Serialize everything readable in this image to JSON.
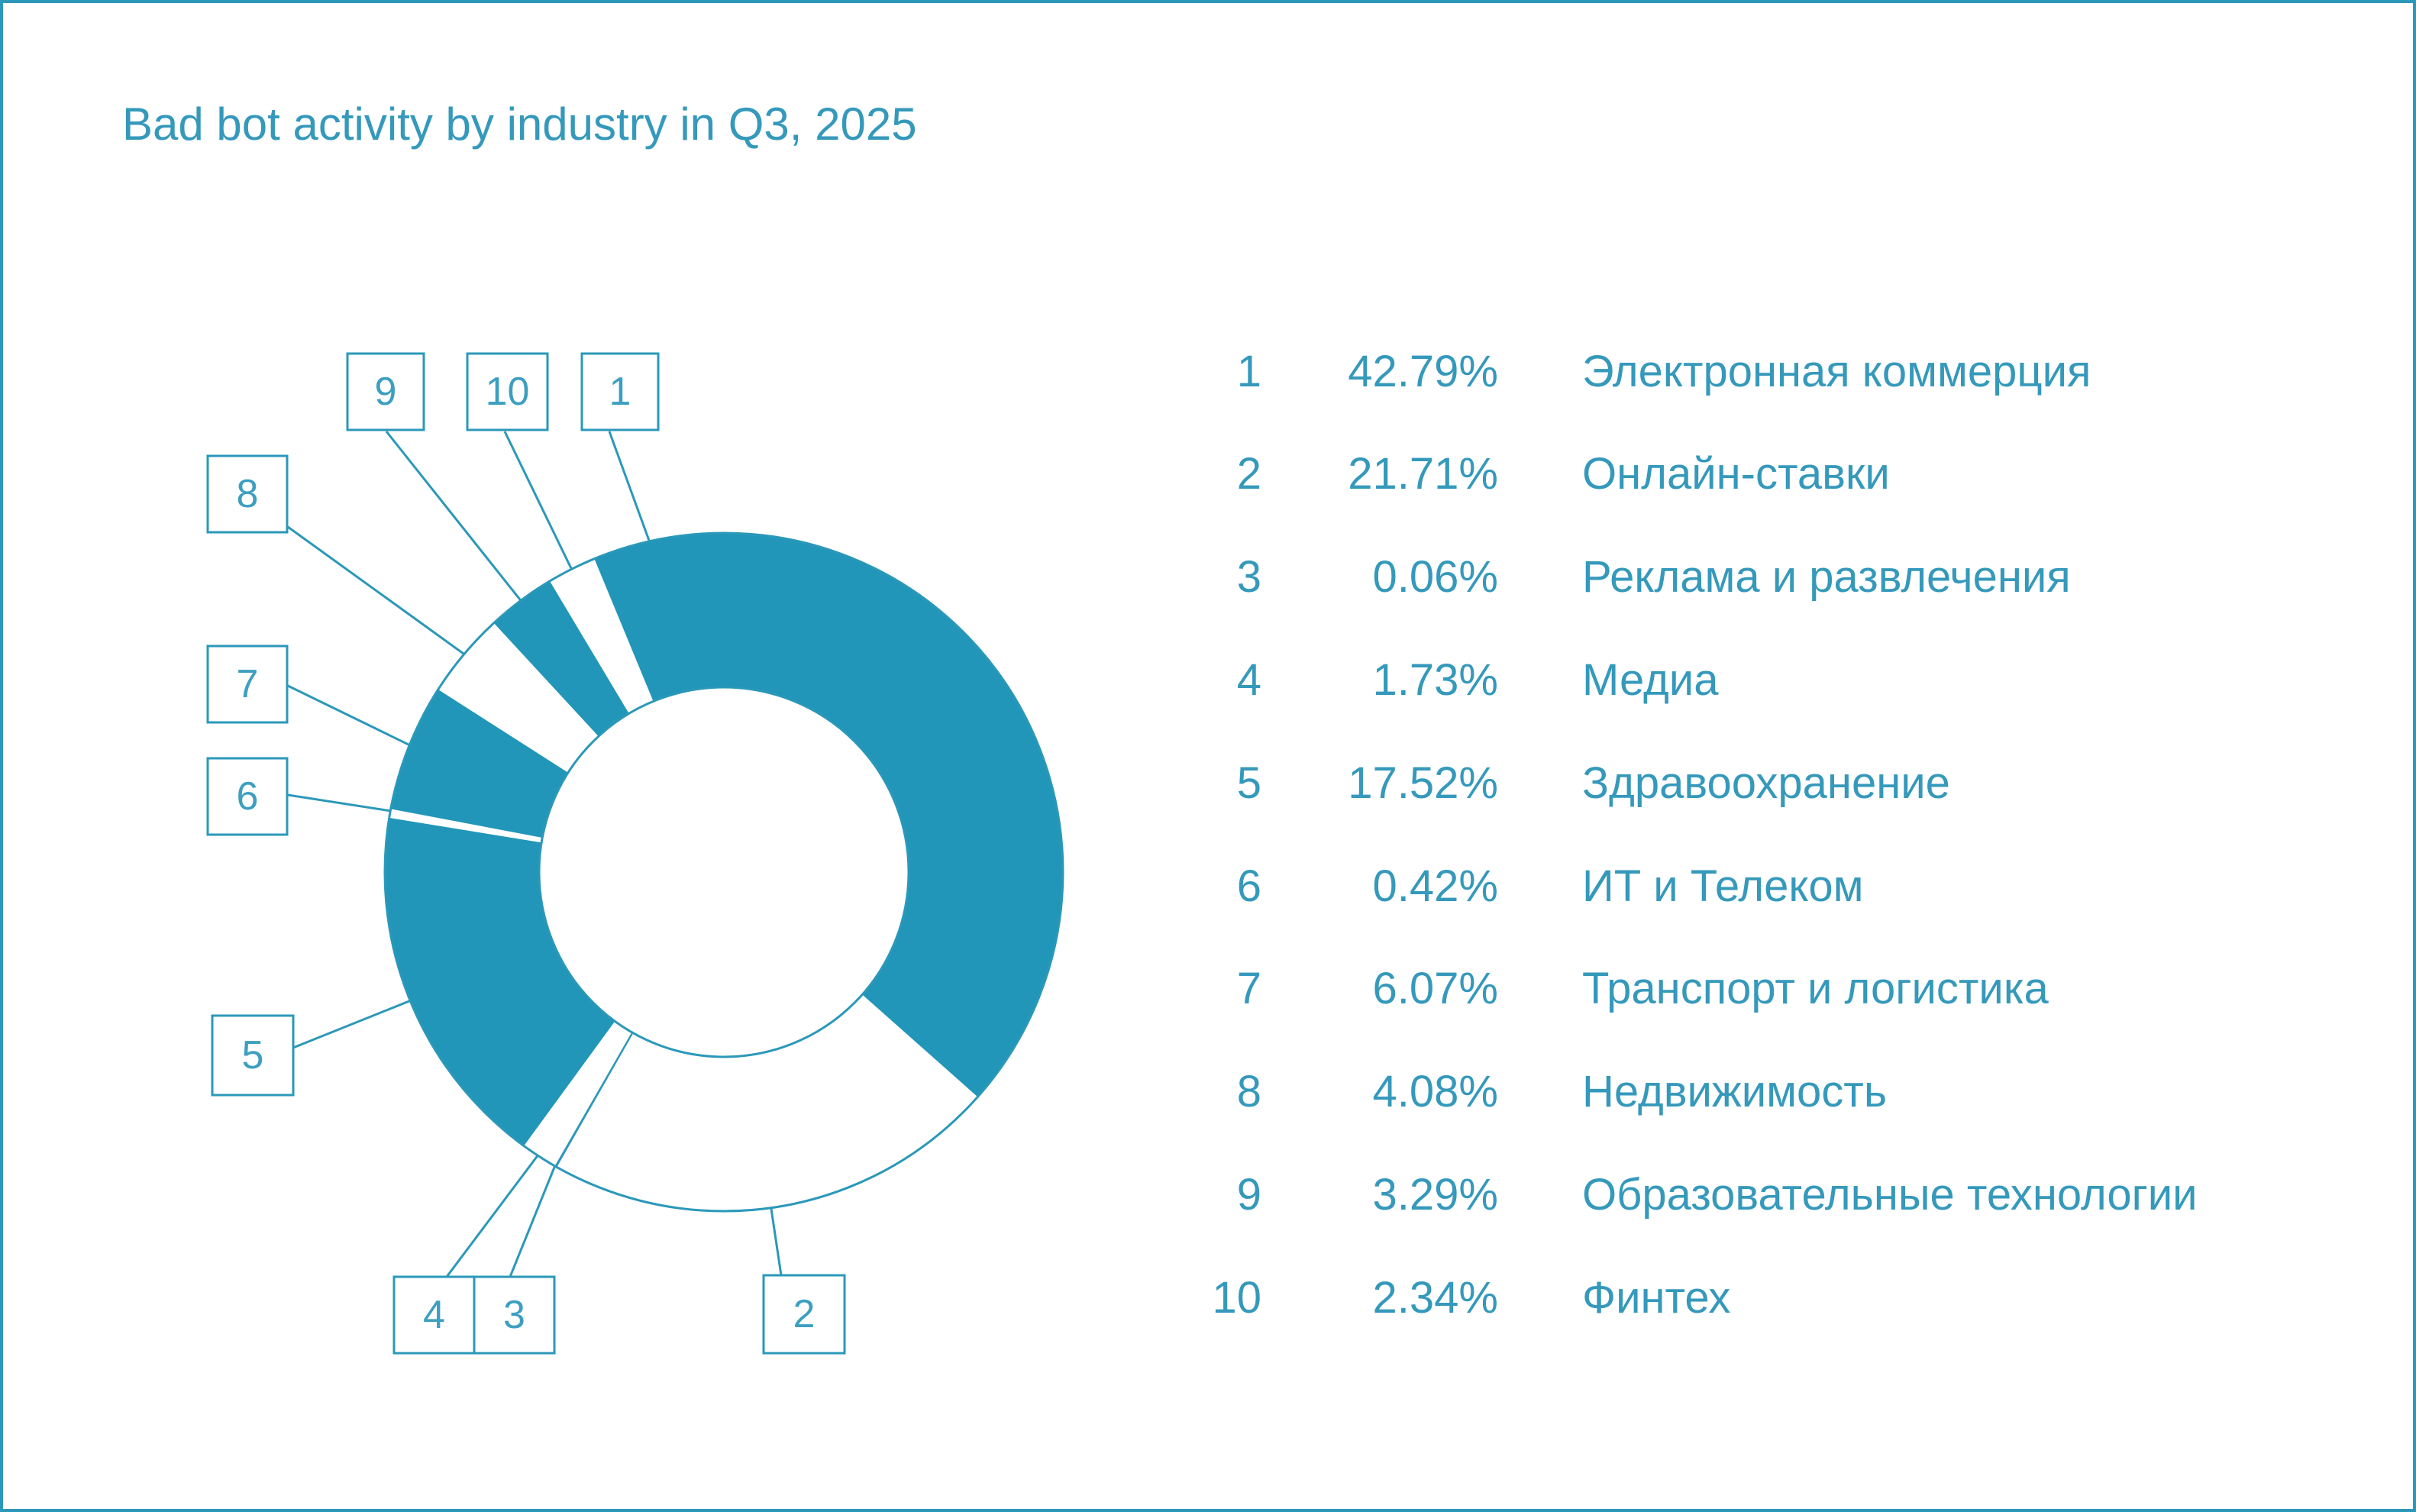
{
  "title": "Bad bot activity by industry in Q3, 2025",
  "colors": {
    "fill_teal": "#2196b8",
    "line_teal": "#2b98b9",
    "text_teal": "#3599bb"
  },
  "legend": {
    "rows": [
      {
        "rank": "1",
        "percent": "42.79%",
        "name": "Электронная коммерция"
      },
      {
        "rank": "2",
        "percent": "21.71%",
        "name": "Онлайн-ставки"
      },
      {
        "rank": "3",
        "percent": "0.06%",
        "name": "Реклама и развлечения"
      },
      {
        "rank": "4",
        "percent": "1.73%",
        "name": "Медиа"
      },
      {
        "rank": "5",
        "percent": "17.52%",
        "name": "Здравоохранение"
      },
      {
        "rank": "6",
        "percent": "0.42%",
        "name": "ИТ и Телеком"
      },
      {
        "rank": "7",
        "percent": "6.07%",
        "name": "Транспорт и логистика"
      },
      {
        "rank": "8",
        "percent": "4.08%",
        "name": "Недвижимость"
      },
      {
        "rank": "9",
        "percent": "3.29%",
        "name": "Образовательные технологии"
      },
      {
        "rank": "10",
        "percent": "2.34%",
        "name": "Финтех"
      }
    ]
  },
  "chart_data": {
    "type": "pie",
    "subtype": "donut",
    "title": "Bad bot activity by industry in Q3, 2025",
    "categories": [
      "Электронная коммерция",
      "Онлайн-ставки",
      "Реклама и развлечения",
      "Медиа",
      "Здравоохранение",
      "ИТ и Телеком",
      "Транспорт и логистика",
      "Недвижимость",
      "Образовательные технологии",
      "Финтех"
    ],
    "values": [
      42.79,
      21.71,
      0.06,
      1.73,
      17.52,
      0.42,
      6.07,
      4.08,
      3.29,
      2.34
    ],
    "unit": "%",
    "slice_labels": [
      "1",
      "2",
      "3",
      "4",
      "5",
      "6",
      "7",
      "8",
      "9",
      "10"
    ],
    "filled": [
      true,
      false,
      true,
      false,
      true,
      false,
      true,
      false,
      true,
      false
    ],
    "direction": "clockwise",
    "start_angle_deg": -22.5,
    "fill_color": "#2196b8",
    "outline_color": "#2b98b9",
    "legend_position": "right"
  }
}
